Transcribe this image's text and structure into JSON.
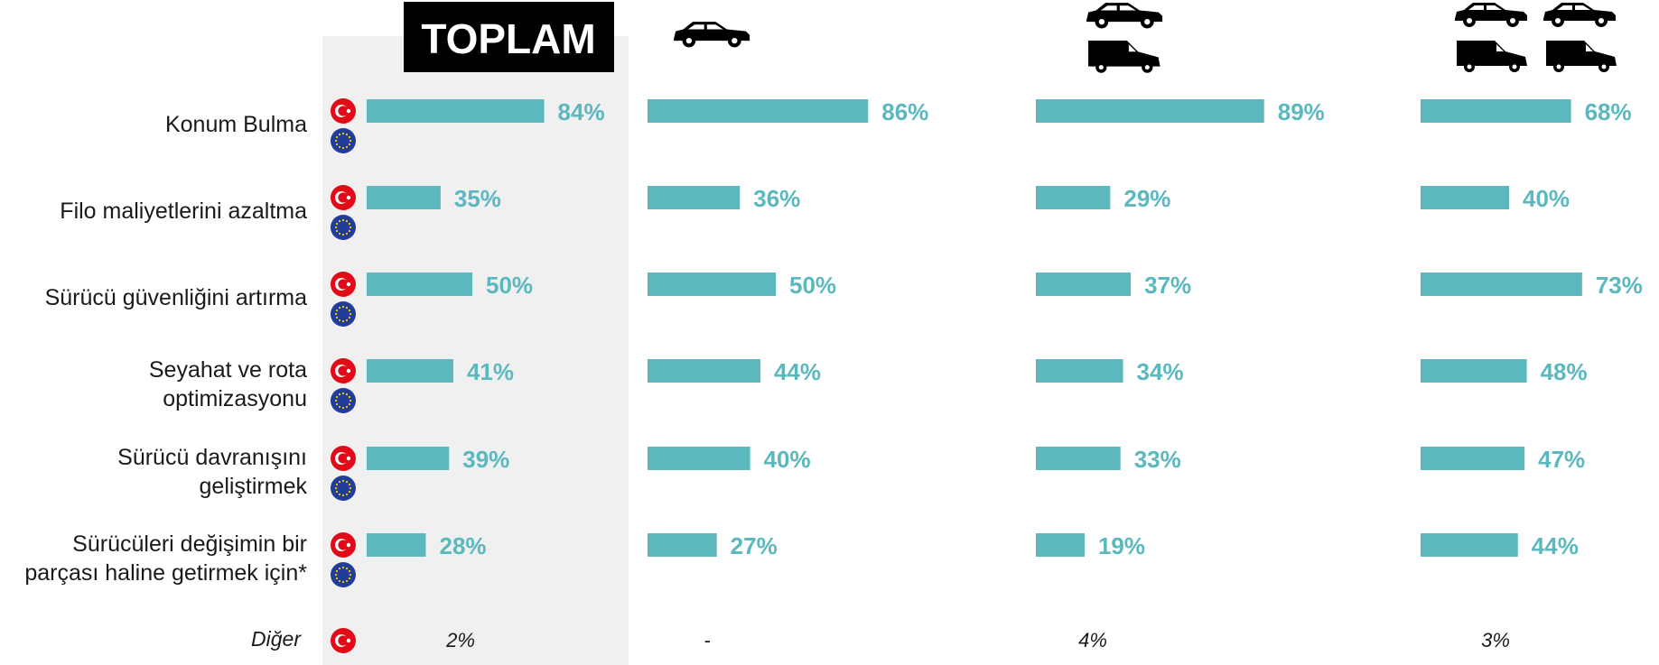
{
  "colors": {
    "bar": "#5ab8be",
    "value_text": "#5ab8be",
    "panel_bg": "#f0f0f0",
    "title_bg": "#000000",
    "tr_flag": "#e30a17",
    "eu_flag": "#1f3d99",
    "eu_star": "#ffcc00"
  },
  "header": {
    "total_label": "TOPLAM"
  },
  "icons": [
    "car-icon",
    "car-and-van-icon",
    "cars-and-vans-icon"
  ],
  "chart_data": {
    "type": "bar",
    "orientation": "horizontal",
    "categories": [
      "Konum Bulma",
      "Filo maliyetlerini azaltma",
      "Sürücü güvenliğini artırma",
      "Seyahat ve rota optimizasyonu",
      "Sürücü davranışını geliştirmek",
      "Sürücüleri değişimin bir parçası haline getirmek için*"
    ],
    "category_lines": [
      [
        "Konum Bulma"
      ],
      [
        "Filo maliyetlerini azaltma"
      ],
      [
        "Sürücü güvenliğini artırma"
      ],
      [
        "Seyahat ve rota",
        "optimizasyonu"
      ],
      [
        "Sürücü davranışını",
        "geliştirmek"
      ],
      [
        "Sürücüleri değişimin bir",
        "parçası haline getirmek için*"
      ]
    ],
    "series": [
      {
        "name": "TOPLAM",
        "values": [
          84,
          35,
          50,
          41,
          39,
          28
        ],
        "labels": [
          "84%",
          "35%",
          "50%",
          "41%",
          "39%",
          "28%"
        ],
        "other": "2%"
      },
      {
        "values": [
          86,
          36,
          50,
          44,
          40,
          27
        ],
        "labels": [
          "86%",
          "36%",
          "50%",
          "44%",
          "40%",
          "27%"
        ],
        "other": "-"
      },
      {
        "values": [
          89,
          29,
          37,
          34,
          33,
          19
        ],
        "labels": [
          "89%",
          "29%",
          "37%",
          "34%",
          "33%",
          "19%"
        ],
        "other": "4%"
      },
      {
        "values": [
          68,
          40,
          73,
          48,
          47,
          44
        ],
        "labels": [
          "68%",
          "40%",
          "73%",
          "48%",
          "47%",
          "44%"
        ],
        "other": "3%"
      }
    ],
    "other_row_label": "Diğer",
    "xlim": [
      0,
      100
    ],
    "grid": false,
    "legend": "none"
  }
}
